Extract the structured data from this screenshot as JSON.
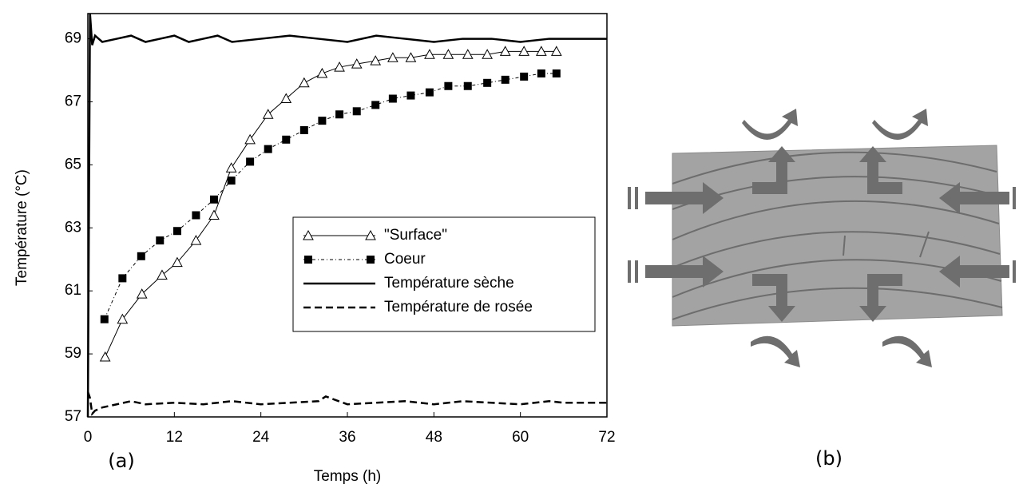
{
  "chart_data": {
    "type": "line",
    "xlabel": "Temps (h)",
    "ylabel": "Température (°C)",
    "xlim": [
      0,
      72
    ],
    "xticks": [
      0,
      12,
      24,
      36,
      48,
      60,
      72
    ],
    "ylim": [
      57,
      69.8
    ],
    "yticks": [
      57,
      59,
      61,
      63,
      65,
      67,
      69
    ],
    "series": [
      {
        "name": "\"Surface\"",
        "color": "#000000",
        "marker": "triangle",
        "dash": "solid",
        "x": [
          2.4,
          4.8,
          7.5,
          10.3,
          12.4,
          15,
          17.5,
          19.9,
          22.5,
          25,
          27.5,
          30,
          32.5,
          34.9,
          37.3,
          39.9,
          42.3,
          44.8,
          47.4,
          50,
          52.7,
          55.4,
          57.9,
          60.5,
          62.9,
          65
        ],
        "values": [
          58.9,
          60.1,
          60.9,
          61.5,
          61.9,
          62.6,
          63.4,
          64.9,
          65.8,
          66.6,
          67.1,
          67.6,
          67.9,
          68.1,
          68.2,
          68.3,
          68.4,
          68.4,
          68.5,
          68.5,
          68.5,
          68.5,
          68.6,
          68.6,
          68.6,
          68.6
        ]
      },
      {
        "name": "Coeur",
        "color": "#000000",
        "marker": "square",
        "dash": "dashdot",
        "x": [
          2.3,
          4.8,
          7.4,
          10,
          12.4,
          15,
          17.5,
          19.9,
          22.5,
          25,
          27.5,
          30,
          32.5,
          34.9,
          37.3,
          39.9,
          42.3,
          44.8,
          47.4,
          50,
          52.7,
          55.4,
          57.9,
          60.5,
          62.9,
          65
        ],
        "values": [
          60.1,
          61.4,
          62.1,
          62.6,
          62.9,
          63.4,
          63.9,
          64.5,
          65.1,
          65.5,
          65.8,
          66.1,
          66.4,
          66.6,
          66.7,
          66.9,
          67.1,
          67.2,
          67.3,
          67.5,
          67.5,
          67.6,
          67.7,
          67.8,
          67.9,
          67.9
        ]
      },
      {
        "name": "Température sèche",
        "color": "#000000",
        "marker": "none",
        "dash": "solid",
        "x": [
          0,
          0.3,
          0.6,
          1,
          2,
          4,
          6,
          8,
          10,
          12,
          14,
          16,
          18,
          20,
          24,
          28,
          32,
          36,
          40,
          44,
          48,
          52,
          56,
          60,
          64,
          66,
          72
        ],
        "values": [
          57,
          69.8,
          68.8,
          69.1,
          68.9,
          69.0,
          69.1,
          68.9,
          69.0,
          69.1,
          68.9,
          69.0,
          69.1,
          68.9,
          69.0,
          69.1,
          69.0,
          68.9,
          69.1,
          69.0,
          68.9,
          69.0,
          69.0,
          68.9,
          69.0,
          69.0,
          69.0
        ]
      },
      {
        "name": "Température de rosée",
        "color": "#000000",
        "marker": "none",
        "dash": "dashed",
        "x": [
          0,
          0.3,
          0.6,
          1,
          2,
          4,
          6,
          8,
          12,
          16,
          20,
          24,
          28,
          32,
          33,
          36,
          40,
          44,
          48,
          52,
          56,
          60,
          64,
          66,
          72
        ],
        "values": [
          57.8,
          57.6,
          57.1,
          57.2,
          57.3,
          57.4,
          57.5,
          57.4,
          57.45,
          57.4,
          57.5,
          57.4,
          57.45,
          57.5,
          57.65,
          57.4,
          57.45,
          57.5,
          57.4,
          57.5,
          57.45,
          57.4,
          57.5,
          57.45,
          57.45
        ]
      }
    ]
  },
  "panel_labels": [
    "(a)",
    "(b)"
  ]
}
